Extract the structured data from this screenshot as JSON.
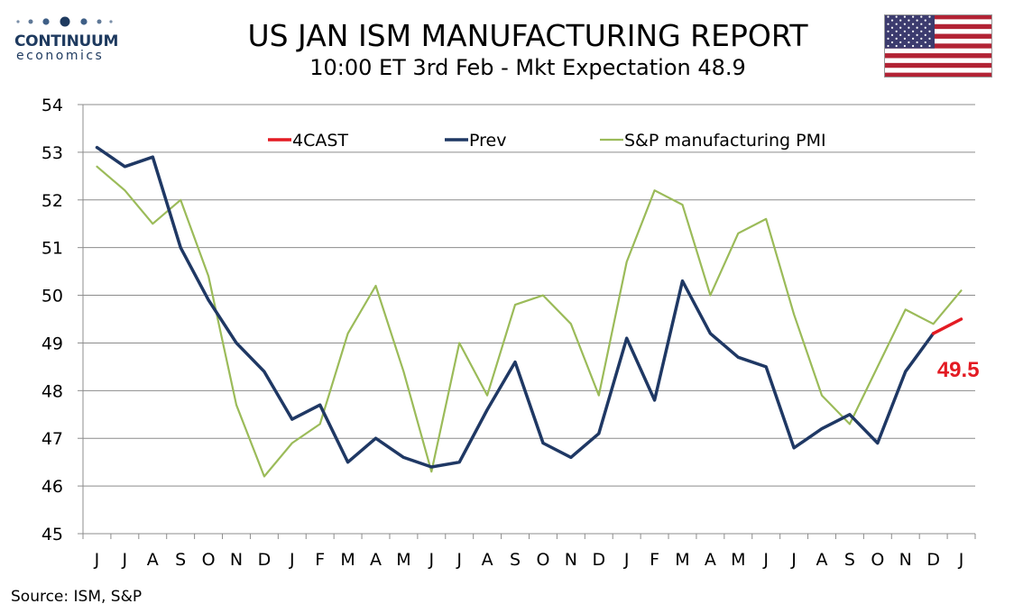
{
  "header": {
    "logo_name": "CONTINUUM",
    "logo_sub": "economics",
    "title": "US JAN ISM MANUFACTURING REPORT",
    "subtitle": "10:00 ET 3rd Feb - Mkt Expectation 48.9",
    "flag_icon": "us-flag-icon"
  },
  "footer": {
    "source": "Source: ISM, S&P"
  },
  "chart_data": {
    "type": "line",
    "title": "",
    "xlabel": "",
    "ylabel": "",
    "ylim": [
      45,
      54
    ],
    "yticks": [
      45,
      46,
      47,
      48,
      49,
      50,
      51,
      52,
      53,
      54
    ],
    "grid": "horizontal",
    "legend_position": "top",
    "categories": [
      "J",
      "J",
      "A",
      "S",
      "O",
      "N",
      "D",
      "J",
      "F",
      "M",
      "A",
      "M",
      "J",
      "J",
      "A",
      "S",
      "O",
      "N",
      "D",
      "J",
      "F",
      "M",
      "A",
      "M",
      "J",
      "J",
      "A",
      "S",
      "O",
      "N",
      "D",
      "J"
    ],
    "series": [
      {
        "name": "4CAST",
        "color": "#e31b23",
        "values": [
          null,
          null,
          null,
          null,
          null,
          null,
          null,
          null,
          null,
          null,
          null,
          null,
          null,
          null,
          null,
          null,
          null,
          null,
          null,
          null,
          null,
          null,
          null,
          null,
          null,
          null,
          null,
          null,
          null,
          null,
          49.2,
          49.5
        ]
      },
      {
        "name": "Prev",
        "color": "#1f3864",
        "values": [
          53.1,
          52.7,
          52.9,
          51.0,
          49.9,
          49.0,
          48.4,
          47.4,
          47.7,
          46.5,
          47.0,
          46.6,
          46.4,
          46.5,
          47.6,
          48.6,
          46.9,
          46.6,
          47.1,
          49.1,
          47.8,
          50.3,
          49.2,
          48.7,
          48.5,
          46.8,
          47.2,
          47.5,
          46.9,
          48.4,
          49.2,
          null
        ]
      },
      {
        "name": "S&P manufacturing PMI",
        "color": "#9bbb59",
        "values": [
          52.7,
          52.2,
          51.5,
          52.0,
          50.4,
          47.7,
          46.2,
          46.9,
          47.3,
          49.2,
          50.2,
          48.4,
          46.3,
          49.0,
          47.9,
          49.8,
          50.0,
          49.4,
          47.9,
          50.7,
          52.2,
          51.9,
          50.0,
          51.3,
          51.6,
          49.6,
          47.9,
          47.3,
          48.5,
          49.7,
          49.4,
          50.1
        ]
      }
    ],
    "annotation": {
      "text": "49.5",
      "color": "#e31b23"
    }
  }
}
